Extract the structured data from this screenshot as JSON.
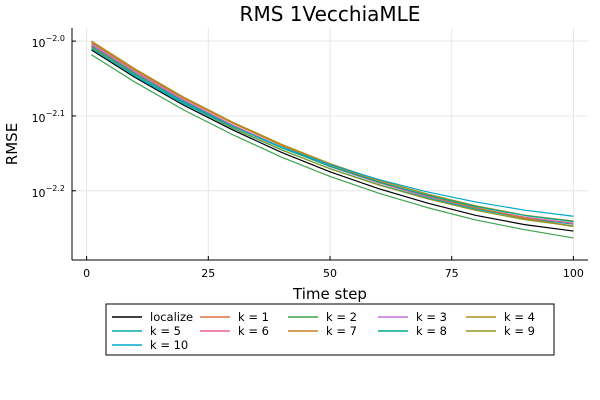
{
  "chart_data": {
    "type": "line",
    "title": "RMS 1VecchiaMLE",
    "xlabel": "Time step",
    "ylabel": "RMSE",
    "x_ticks": [
      "0",
      "25",
      "50",
      "75",
      "100"
    ],
    "x_tick_values": [
      0,
      25,
      50,
      75,
      100
    ],
    "y_ticks": [
      {
        "base": "10",
        "exp": "−2.0",
        "value": -2.0
      },
      {
        "base": "10",
        "exp": "−2.1",
        "value": -2.1
      },
      {
        "base": "10",
        "exp": "−2.2",
        "value": -2.2
      }
    ],
    "xlim": [
      -3,
      103
    ],
    "ylim_log10": [
      -2.2925,
      -1.9825
    ],
    "y_scale": "log",
    "grid": true,
    "legend_placement": "bottom",
    "x": [
      1,
      10,
      20,
      30,
      40,
      50,
      60,
      70,
      80,
      90,
      100
    ],
    "series": [
      {
        "name": "localize",
        "color": "#000000",
        "log10_values": [
          -2.0119,
          -2.0488,
          -2.0859,
          -2.1187,
          -2.1486,
          -2.1746,
          -2.1972,
          -2.2164,
          -2.233,
          -2.2452,
          -2.2538
        ]
      },
      {
        "name": "k = 1",
        "color": "#e26f46",
        "log10_values": [
          -2.0,
          -2.0374,
          -2.0755,
          -2.1093,
          -2.1393,
          -2.1654,
          -2.1879,
          -2.2071,
          -2.2236,
          -2.2373,
          -2.247
        ]
      },
      {
        "name": "k = 2",
        "color": "#3da44d",
        "log10_values": [
          -2.0182,
          -2.0551,
          -2.0922,
          -2.125,
          -2.1549,
          -2.1808,
          -2.2033,
          -2.2225,
          -2.2391,
          -2.252,
          -2.263
        ]
      },
      {
        "name": "k = 3",
        "color": "#c371d2",
        "log10_values": [
          -2.0033,
          -2.041,
          -2.0786,
          -2.1121,
          -2.1416,
          -2.1676,
          -2.1893,
          -2.208,
          -2.2238,
          -2.2363,
          -2.2445
        ]
      },
      {
        "name": "k = 4",
        "color": "#ac8d18",
        "log10_values": [
          -2.0,
          -2.0375,
          -2.075,
          -2.1083,
          -2.1378,
          -2.1637,
          -2.1858,
          -2.2043,
          -2.2201,
          -2.2326,
          -2.2404
        ]
      },
      {
        "name": "k = 5",
        "color": "#00a9ad",
        "log10_values": [
          -2.01,
          -2.0469,
          -2.0838,
          -2.1165,
          -2.1454,
          -2.1704,
          -2.1917,
          -2.2096,
          -2.2248,
          -2.2366,
          -2.2446
        ]
      },
      {
        "name": "k = 6",
        "color": "#ed5e93",
        "log10_values": [
          -2.0052,
          -2.0426,
          -2.08,
          -2.1129,
          -2.142,
          -2.1675,
          -2.1891,
          -2.2073,
          -2.223,
          -2.2352,
          -2.2434
        ]
      },
      {
        "name": "k = 7",
        "color": "#c68125",
        "log10_values": [
          -2.0018,
          -2.0392,
          -2.0766,
          -2.1097,
          -2.1393,
          -2.1653,
          -2.1874,
          -2.2065,
          -2.2227,
          -2.2366,
          -2.248
        ]
      },
      {
        "name": "k = 8",
        "color": "#00a98d",
        "log10_values": [
          -2.0067,
          -2.0438,
          -2.081,
          -2.1138,
          -2.1425,
          -2.1673,
          -2.1884,
          -2.206,
          -2.2211,
          -2.233,
          -2.2412
        ]
      },
      {
        "name": "k = 9",
        "color": "#8e971e",
        "log10_values": [
          -2.0084,
          -2.0456,
          -2.0827,
          -2.1157,
          -2.1449,
          -2.1706,
          -2.1923,
          -2.2107,
          -2.2263,
          -2.2386,
          -2.2472
        ]
      },
      {
        "name": "k = 10",
        "color": "#00a8cb",
        "log10_values": [
          -2.01,
          -2.0464,
          -2.0827,
          -2.1141,
          -2.1415,
          -2.1651,
          -2.1849,
          -2.2015,
          -2.2151,
          -2.2259,
          -2.234
        ]
      }
    ]
  }
}
